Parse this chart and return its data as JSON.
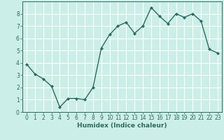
{
  "x": [
    0,
    1,
    2,
    3,
    4,
    5,
    6,
    7,
    8,
    9,
    10,
    11,
    12,
    13,
    14,
    15,
    16,
    17,
    18,
    19,
    20,
    21,
    22,
    23
  ],
  "y": [
    3.9,
    3.1,
    2.7,
    2.1,
    0.4,
    1.1,
    1.1,
    1.0,
    2.0,
    5.2,
    6.3,
    7.0,
    7.3,
    6.4,
    7.0,
    8.5,
    7.8,
    7.2,
    8.0,
    7.7,
    8.0,
    7.4,
    5.1,
    4.8
  ],
  "line_color": "#2d6b5e",
  "marker": "D",
  "marker_size": 2.0,
  "line_width": 1.0,
  "xlabel": "Humidex (Indice chaleur)",
  "xlabel_fontsize": 6.5,
  "xlim": [
    -0.5,
    23.5
  ],
  "ylim": [
    0,
    9
  ],
  "yticks": [
    0,
    1,
    2,
    3,
    4,
    5,
    6,
    7,
    8
  ],
  "xticks": [
    0,
    1,
    2,
    3,
    4,
    5,
    6,
    7,
    8,
    9,
    10,
    11,
    12,
    13,
    14,
    15,
    16,
    17,
    18,
    19,
    20,
    21,
    22,
    23
  ],
  "bg_color": "#cceee8",
  "grid_color": "#ffffff",
  "tick_fontsize": 5.5,
  "tick_color": "#2d6b5e",
  "spine_color": "#2d6b5e"
}
